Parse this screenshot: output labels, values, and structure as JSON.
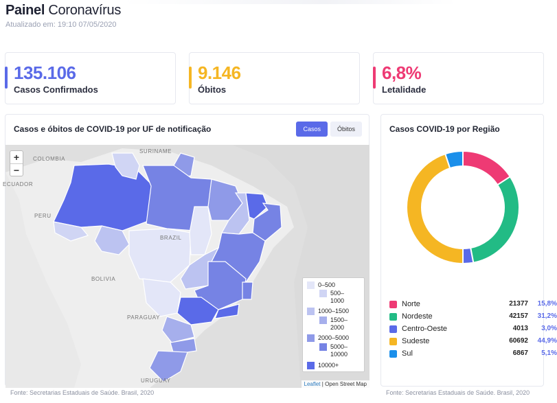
{
  "header": {
    "title_bold": "Painel",
    "title_rest": "Coronavírus",
    "updated_label": "Atualizado em:",
    "updated_value": "19:10 07/05/2020"
  },
  "kpis": [
    {
      "value": "135.106",
      "label": "Casos Confirmados",
      "color": "#5a6ae8"
    },
    {
      "value": "9.146",
      "label": "Óbitos",
      "color": "#f5b623"
    },
    {
      "value": "6,8%",
      "label": "Letalidade",
      "color": "#ee3a74"
    }
  ],
  "map_panel": {
    "title": "Casos e óbitos de COVID-19 por UF de notificação",
    "tabs": [
      "Casos",
      "Óbitos"
    ],
    "zoom_in": "+",
    "zoom_out": "−",
    "place_labels": [
      "SURINAME",
      "COLOMBIA",
      "ECUADOR",
      "PERU",
      "BRAZIL",
      "BOLIVIA",
      "PARAGUAY",
      "URUGUAY"
    ],
    "legend": [
      {
        "label": "0–500",
        "color": "#e3e6f8"
      },
      {
        "label": "500–1000",
        "color": "#d0d5f4"
      },
      {
        "label": "1000–1500",
        "color": "#bcc3f1"
      },
      {
        "label": "1500–2000",
        "color": "#a6afec"
      },
      {
        "label": "2000–5000",
        "color": "#8f9ae8"
      },
      {
        "label": "5000–10000",
        "color": "#7683e4"
      },
      {
        "label": "10000+",
        "color": "#5a6ae8"
      }
    ],
    "attribution_link": "Leaflet",
    "attribution_rest": "| Open Street Map"
  },
  "region_panel": {
    "title": "Casos COVID-19 por Região",
    "regions": [
      {
        "name": "Norte",
        "cases": "21377",
        "pct": "15,8%",
        "value": 21377,
        "color": "#ee3a74"
      },
      {
        "name": "Nordeste",
        "cases": "42157",
        "pct": "31,2%",
        "value": 42157,
        "color": "#22bb85"
      },
      {
        "name": "Centro-Oeste",
        "cases": "4013",
        "pct": "3,0%",
        "value": 4013,
        "color": "#5a6ae8"
      },
      {
        "name": "Sudeste",
        "cases": "60692",
        "pct": "44,9%",
        "value": 60692,
        "color": "#f5b623"
      },
      {
        "name": "Sul",
        "cases": "6867",
        "pct": "5,1%",
        "value": 6867,
        "color": "#1b8fea"
      }
    ]
  },
  "footers": {
    "left": "Fonte: Secretarias Estaduais de Saúde. Brasil, 2020",
    "right": "Fonte: Secretarias Estaduais de Saúde. Brasil, 2020"
  },
  "chart_data": {
    "type": "pie",
    "categories": [
      "Norte",
      "Nordeste",
      "Centro-Oeste",
      "Sudeste",
      "Sul"
    ],
    "values": [
      21377,
      42157,
      4013,
      60692,
      6867
    ],
    "title": "Casos COVID-19 por Região"
  }
}
